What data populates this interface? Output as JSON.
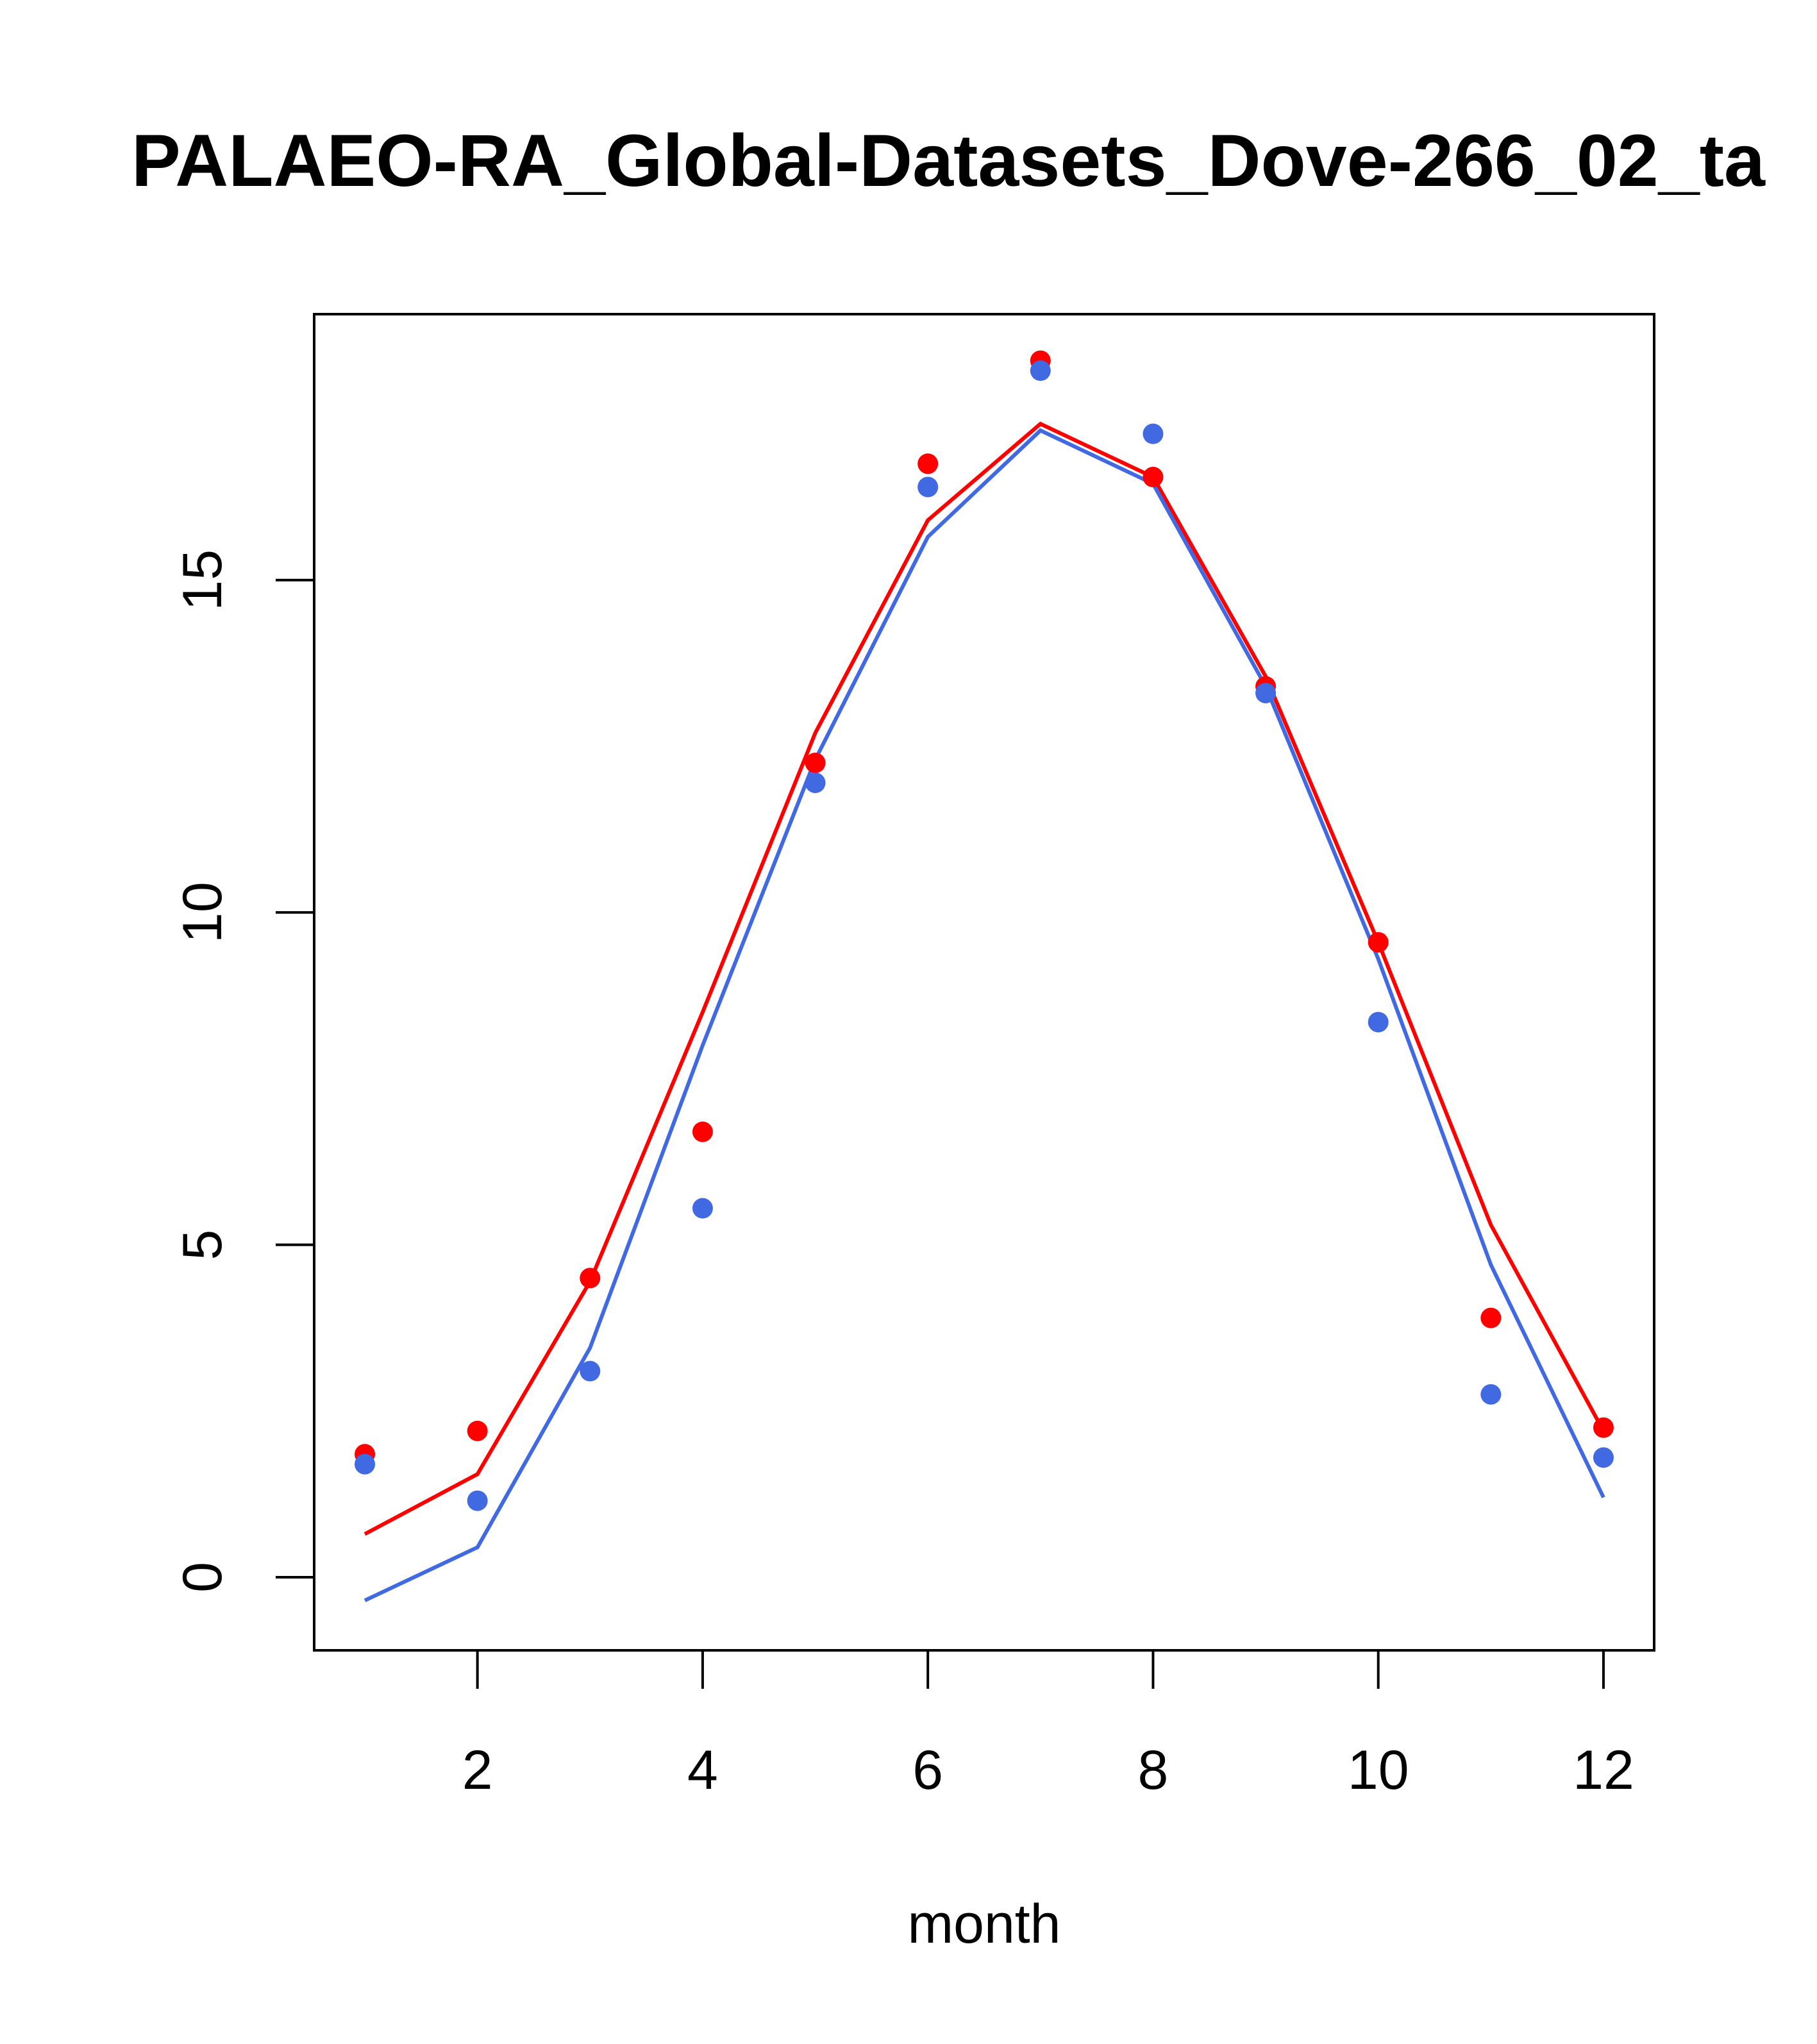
{
  "chart_data": {
    "type": "line",
    "title": "PALAEO-RA_Global-Datasets_Dove-266_02_ta",
    "xlabel": "month",
    "ylabel": "",
    "xlim": [
      0.55,
      12.45
    ],
    "ylim": [
      -1.1,
      19.0
    ],
    "xticks": [
      2,
      4,
      6,
      8,
      10,
      12
    ],
    "yticks": [
      0,
      5,
      10,
      15
    ],
    "grid": false,
    "legend": "none",
    "x": [
      1,
      2,
      3,
      4,
      5,
      6,
      7,
      8,
      9,
      10,
      11,
      12
    ],
    "series": [
      {
        "color": "#ff0000",
        "line": [
          0.65,
          1.55,
          4.45,
          8.5,
          12.7,
          15.9,
          17.35,
          16.55,
          13.55,
          9.55,
          5.3,
          2.2
        ],
        "points": [
          1.85,
          2.2,
          4.5,
          6.7,
          12.25,
          16.75,
          18.3,
          16.55,
          13.4,
          9.55,
          3.9,
          2.25
        ]
      },
      {
        "color": "#4169e1",
        "line": [
          -0.35,
          0.45,
          3.45,
          8.0,
          12.3,
          15.65,
          17.25,
          16.45,
          13.4,
          9.3,
          4.7,
          1.2
        ],
        "points": [
          1.7,
          1.15,
          3.1,
          5.55,
          11.95,
          16.4,
          18.15,
          17.2,
          13.3,
          8.35,
          2.75,
          1.8
        ]
      }
    ]
  }
}
